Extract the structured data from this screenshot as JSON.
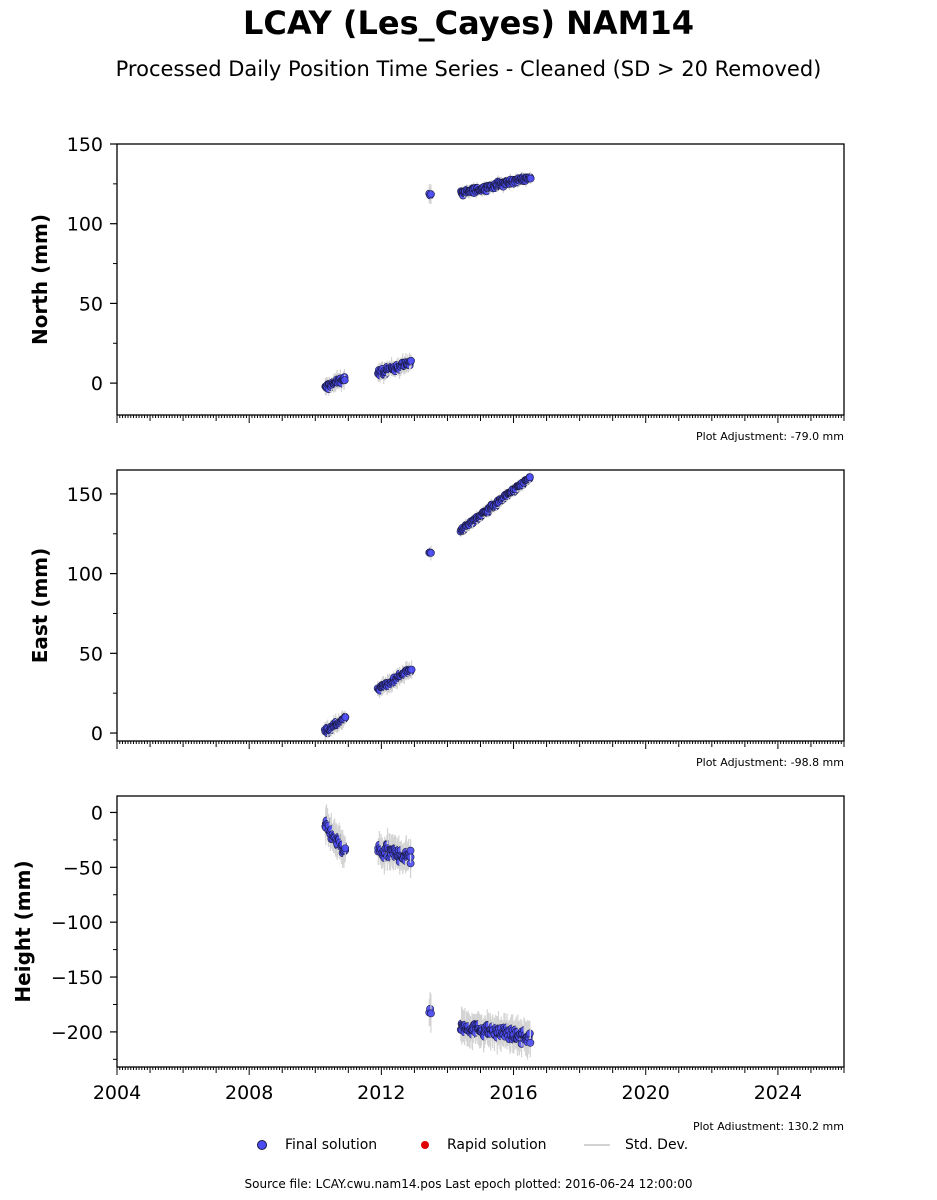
{
  "title": "LCAY (Les_Cayes) NAM14",
  "subtitle": "Processed Daily Position Time Series - Cleaned (SD > 20 Removed)",
  "footer": "Source file: LCAY.cwu.nam14.pos  Last epoch plotted: 2016-06-24 12:00:00",
  "legend": {
    "final": "Final solution",
    "rapid": "Rapid solution",
    "sd": "Std. Dev."
  },
  "colors": {
    "final": "#4b4bf2",
    "final_edge": "#1a1a40",
    "rapid": "#e00000",
    "sd": "#d3d3d3"
  },
  "chart_data": [
    {
      "type": "scatter",
      "ylabel": "North (mm)",
      "ylim": [
        -20,
        150
      ],
      "yticks": [
        0,
        50,
        100,
        150
      ],
      "xlim": [
        2004,
        2026
      ],
      "adjustment": "Plot Adjustment: -79.0 mm",
      "clusters": [
        {
          "x0": 2010.3,
          "x1": 2010.9,
          "y0": -3,
          "y1": 3,
          "spread": 3,
          "err": 3
        },
        {
          "x0": 2011.9,
          "x1": 2012.9,
          "y0": 6,
          "y1": 13,
          "spread": 3,
          "err": 3
        },
        {
          "x0": 2013.45,
          "x1": 2013.5,
          "y0": 119,
          "y1": 119,
          "spread": 3,
          "err": 4
        },
        {
          "x0": 2014.4,
          "x1": 2016.5,
          "y0": 119,
          "y1": 129,
          "spread": 2.5,
          "err": 2
        }
      ]
    },
    {
      "type": "scatter",
      "ylabel": "East (mm)",
      "ylim": [
        -5,
        165
      ],
      "yticks": [
        0,
        50,
        100,
        150
      ],
      "xlim": [
        2004,
        2026
      ],
      "adjustment": "Plot Adjustment: -98.8 mm",
      "clusters": [
        {
          "x0": 2010.3,
          "x1": 2010.9,
          "y0": 1,
          "y1": 9,
          "spread": 2.5,
          "err": 3
        },
        {
          "x0": 2011.9,
          "x1": 2012.9,
          "y0": 27,
          "y1": 40,
          "spread": 2.5,
          "err": 3
        },
        {
          "x0": 2013.45,
          "x1": 2013.5,
          "y0": 113,
          "y1": 113,
          "spread": 2,
          "err": 3
        },
        {
          "x0": 2014.4,
          "x1": 2016.5,
          "y0": 127,
          "y1": 160,
          "spread": 2,
          "err": 2
        }
      ]
    },
    {
      "type": "scatter",
      "ylabel": "Height (mm)",
      "ylim": [
        -232,
        15
      ],
      "yticks": [
        0,
        -50,
        -100,
        -150,
        -200
      ],
      "xlim": [
        2004,
        2026
      ],
      "xticks": [
        2004,
        2008,
        2012,
        2016,
        2020,
        2024
      ],
      "adjustment": "Plot Adjustment: 130.2 mm",
      "clusters": [
        {
          "x0": 2010.3,
          "x1": 2010.9,
          "y0": -12,
          "y1": -35,
          "spread": 9,
          "err": 8
        },
        {
          "x0": 2011.9,
          "x1": 2012.9,
          "y0": -35,
          "y1": -40,
          "spread": 9,
          "err": 8
        },
        {
          "x0": 2013.45,
          "x1": 2013.5,
          "y0": -180,
          "y1": -180,
          "spread": 7,
          "err": 10
        },
        {
          "x0": 2014.4,
          "x1": 2016.5,
          "y0": -195,
          "y1": -205,
          "spread": 8,
          "err": 8
        }
      ]
    }
  ]
}
